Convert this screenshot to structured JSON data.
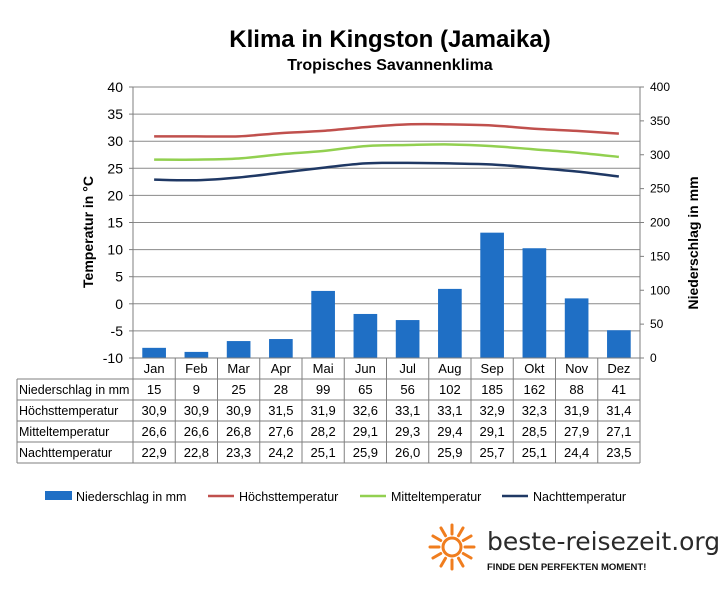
{
  "chart_data": {
    "type": "bar+line",
    "title": "Klima in Kingston (Jamaika)",
    "subtitle": "Tropisches Savannenklima",
    "categories": [
      "Jan",
      "Feb",
      "Mar",
      "Apr",
      "Mai",
      "Jun",
      "Jul",
      "Aug",
      "Sep",
      "Okt",
      "Nov",
      "Dez"
    ],
    "y_left": {
      "label": "Temperatur in °C",
      "min": -10,
      "max": 40,
      "step": 5
    },
    "y_right": {
      "label": "Niederschlag in mm",
      "min": 0,
      "max": 400,
      "step": 50
    },
    "grid": "horizontal",
    "legend_position": "bottom",
    "series": [
      {
        "name": "Niederschlag in mm",
        "type": "bar",
        "axis": "right",
        "color": "#1F6FC5",
        "values": [
          15,
          9,
          25,
          28,
          99,
          65,
          56,
          102,
          185,
          162,
          88,
          41
        ]
      },
      {
        "name": "Höchsttemperatur",
        "type": "line",
        "axis": "left",
        "color": "#C0504D",
        "values": [
          30.9,
          30.9,
          30.9,
          31.5,
          31.9,
          32.6,
          33.1,
          33.1,
          32.9,
          32.3,
          31.9,
          31.4
        ]
      },
      {
        "name": "Mitteltemperatur",
        "type": "line",
        "axis": "left",
        "color": "#92D050",
        "values": [
          26.6,
          26.6,
          26.8,
          27.6,
          28.2,
          29.1,
          29.3,
          29.4,
          29.1,
          28.5,
          27.9,
          27.1
        ]
      },
      {
        "name": "Nachttemperatur",
        "type": "line",
        "axis": "left",
        "color": "#1F3864",
        "values": [
          22.9,
          22.8,
          23.3,
          24.2,
          25.1,
          25.9,
          26.0,
          25.9,
          25.7,
          25.1,
          24.4,
          23.5
        ]
      }
    ],
    "table_rows": [
      {
        "label": "Niederschlag in mm",
        "values": [
          "15",
          "9",
          "25",
          "28",
          "99",
          "65",
          "56",
          "102",
          "185",
          "162",
          "88",
          "41"
        ]
      },
      {
        "label": "Höchsttemperatur",
        "values": [
          "30,9",
          "30,9",
          "30,9",
          "31,5",
          "31,9",
          "32,6",
          "33,1",
          "33,1",
          "32,9",
          "32,3",
          "31,9",
          "31,4"
        ]
      },
      {
        "label": "Mitteltemperatur",
        "values": [
          "26,6",
          "26,6",
          "26,8",
          "27,6",
          "28,2",
          "29,1",
          "29,3",
          "29,4",
          "29,1",
          "28,5",
          "27,9",
          "27,1"
        ]
      },
      {
        "label": "Nachttemperatur",
        "values": [
          "22,9",
          "22,8",
          "23,3",
          "24,2",
          "25,1",
          "25,9",
          "26,0",
          "25,9",
          "25,7",
          "25,1",
          "24,4",
          "23,5"
        ]
      }
    ]
  },
  "branding": {
    "site": "beste-reisezeit.org",
    "slogan": "FINDE DEN PERFEKTEN MOMENT!",
    "logo_icon": "sun-icon",
    "logo_color": "#F07D1E"
  }
}
